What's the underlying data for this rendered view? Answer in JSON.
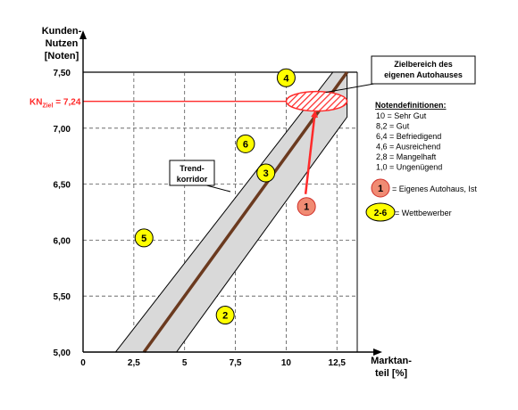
{
  "chart_data": {
    "type": "scatter",
    "ylabel_lines": [
      "Kunden-",
      "Nutzen",
      "[Noten]"
    ],
    "xlabel_lines": [
      "Marktan-",
      "teil [%]"
    ],
    "xlim": [
      0,
      13.5
    ],
    "ylim": [
      5.0,
      7.5
    ],
    "x_ticks": [
      {
        "v": 0,
        "label": "0"
      },
      {
        "v": 2.5,
        "label": "2,5"
      },
      {
        "v": 5,
        "label": "5"
      },
      {
        "v": 7.5,
        "label": "7,5"
      },
      {
        "v": 10,
        "label": "10"
      },
      {
        "v": 12.5,
        "label": "12,5"
      }
    ],
    "y_ticks": [
      {
        "v": 5.0,
        "label": "5,00"
      },
      {
        "v": 5.5,
        "label": "5,50"
      },
      {
        "v": 6.0,
        "label": "6,00"
      },
      {
        "v": 6.5,
        "label": "6,50"
      },
      {
        "v": 7.0,
        "label": "7,00"
      },
      {
        "v": 7.5,
        "label": "7,50"
      }
    ],
    "target_line": {
      "y": 7.24,
      "label_main": "KN",
      "label_sub": "Ziel",
      "label_value": " = 7,24"
    },
    "trend_line": {
      "x1": 3.0,
      "y1": 5.0,
      "x2": 13.0,
      "y2": 7.5
    },
    "corridor": [
      [
        1.6,
        5.0
      ],
      [
        4.6,
        5.0
      ],
      [
        13.0,
        7.1
      ],
      [
        13.0,
        7.5
      ],
      [
        12.3,
        7.5
      ]
    ],
    "points": [
      {
        "label": "1",
        "x": 11.0,
        "y": 6.3,
        "kind": "own"
      },
      {
        "label": "2",
        "x": 7.0,
        "y": 5.33,
        "kind": "competitor"
      },
      {
        "label": "3",
        "x": 9.0,
        "y": 6.6,
        "kind": "competitor"
      },
      {
        "label": "4",
        "x": 10.0,
        "y": 7.45,
        "kind": "competitor"
      },
      {
        "label": "5",
        "x": 3.0,
        "y": 6.02,
        "kind": "competitor"
      },
      {
        "label": "6",
        "x": 8.0,
        "y": 6.86,
        "kind": "competitor"
      }
    ],
    "target_zone": {
      "x": 11.5,
      "y": 7.24,
      "label_lines": [
        "Zielbereich des",
        "eigenen Autohauses"
      ]
    },
    "corridor_label_lines": [
      "Trend-",
      "korridor"
    ],
    "legend": {
      "title": "Notendefinitionen:",
      "grades": [
        "10  = Sehr Gut",
        "8,2 = Gut",
        "6,4 = Befriedigend",
        "4,6 = Ausreichend",
        "2,8 = Mangelhaft",
        "1,0 = Ungenügend"
      ],
      "own_marker": "1",
      "own_text": "= Eigenes Autohaus, Ist",
      "comp_marker": "2-6",
      "comp_text": "= Wettbewerber"
    },
    "colors": {
      "trend": "#6b3a1f",
      "corridor": "#d9d9d9",
      "target": "#ff2a2a",
      "own_fill": "#f08b73",
      "own_stroke": "#d0302a",
      "competitor_fill": "#ffff00"
    }
  }
}
